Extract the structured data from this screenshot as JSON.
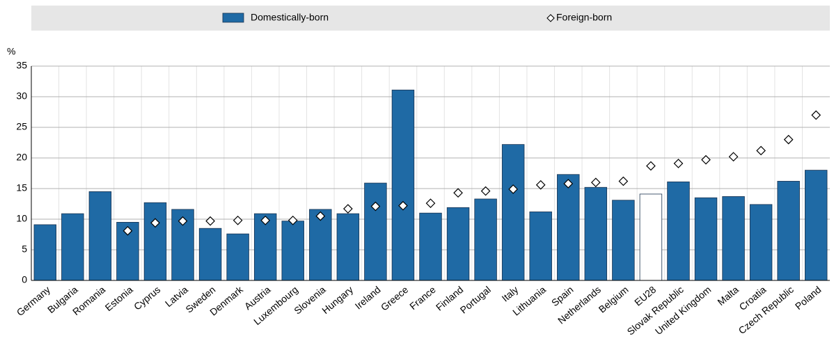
{
  "chart_data": {
    "type": "bar",
    "y_label": "%",
    "categories": [
      "Germany",
      "Bulgaria",
      "Romania",
      "Estonia",
      "Cyprus",
      "Latvia",
      "Sweden",
      "Denmark",
      "Austria",
      "Luxembourg",
      "Slovenia",
      "Hungary",
      "Ireland",
      "Greece",
      "France",
      "Finland",
      "Portugal",
      "Italy",
      "Lithuania",
      "Spain",
      "Netherlands",
      "Belgium",
      "EU28",
      "Slovak Republic",
      "United Kingdom",
      "Malta",
      "Croatia",
      "Czech Republic",
      "Poland"
    ],
    "series": [
      {
        "name": "Domestically-born",
        "kind": "bar",
        "color": "#1f6aa5",
        "colors": [
          "#1f6aa5",
          "#1f6aa5",
          "#1f6aa5",
          "#1f6aa5",
          "#1f6aa5",
          "#1f6aa5",
          "#1f6aa5",
          "#1f6aa5",
          "#1f6aa5",
          "#1f6aa5",
          "#1f6aa5",
          "#1f6aa5",
          "#1f6aa5",
          "#1f6aa5",
          "#1f6aa5",
          "#1f6aa5",
          "#1f6aa5",
          "#1f6aa5",
          "#1f6aa5",
          "#1f6aa5",
          "#1f6aa5",
          "#1f6aa5",
          "#ffffff",
          "#1f6aa5",
          "#1f6aa5",
          "#1f6aa5",
          "#1f6aa5",
          "#1f6aa5",
          "#1f6aa5"
        ],
        "values": [
          9.1,
          10.9,
          14.5,
          9.5,
          12.7,
          11.6,
          8.5,
          7.6,
          10.9,
          9.7,
          11.6,
          10.9,
          15.9,
          31.1,
          11.0,
          11.9,
          13.3,
          22.2,
          11.2,
          17.3,
          15.2,
          13.1,
          14.1,
          16.1,
          13.5,
          13.7,
          12.4,
          16.2,
          18.0
        ]
      },
      {
        "name": "Foreign-born",
        "kind": "diamond",
        "color": "#ffffff",
        "values": [
          null,
          null,
          null,
          8.1,
          9.4,
          9.7,
          9.7,
          9.8,
          9.8,
          9.8,
          10.5,
          11.7,
          12.1,
          12.2,
          12.6,
          14.3,
          14.6,
          14.9,
          15.6,
          15.8,
          16.0,
          16.2,
          18.7,
          19.1,
          19.7,
          20.2,
          21.2,
          23.0,
          27.0
        ]
      }
    ],
    "ylim": [
      0,
      35
    ],
    "yticks": [
      0,
      5,
      10,
      15,
      20,
      25,
      30,
      35
    ],
    "grid": true
  }
}
